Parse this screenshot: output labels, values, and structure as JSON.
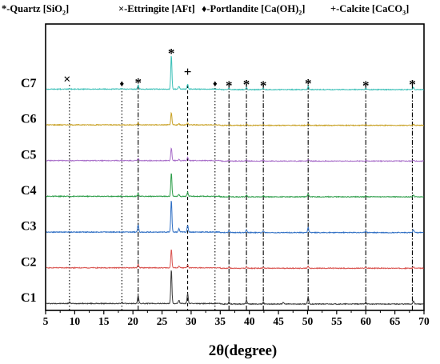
{
  "legend": {
    "quartz": {
      "symbol": "*",
      "label": "-Quartz [SiO",
      "sub": "2",
      "tail": "]"
    },
    "ettringite": {
      "symbol": "×",
      "label": "-Ettringite [AFt]"
    },
    "portlandite": {
      "symbol": "♦",
      "label": "-Portlandite [Ca(OH)",
      "sub": "2",
      "tail": "]"
    },
    "calcite": {
      "symbol": "+",
      "label": "-Calcite [CaCO",
      "sub": "3",
      "tail": "]"
    }
  },
  "chart_data": {
    "type": "line",
    "xlabel": "2θ(degree)",
    "ylabel": "",
    "xlim": [
      5,
      70
    ],
    "xticks": [
      5,
      10,
      15,
      20,
      25,
      30,
      35,
      40,
      45,
      50,
      55,
      60,
      65,
      70
    ],
    "grid": false,
    "series": [
      {
        "name": "C1",
        "color": "#3a3a3a",
        "peaks": [
          [
            9.1,
            0.05
          ],
          [
            18.1,
            0.04
          ],
          [
            20.9,
            0.25
          ],
          [
            26.6,
            1.0
          ],
          [
            27.9,
            0.1
          ],
          [
            29.4,
            0.3
          ],
          [
            36.5,
            0.07
          ],
          [
            39.5,
            0.12
          ],
          [
            42.4,
            0.06
          ],
          [
            45.8,
            0.05
          ],
          [
            50.1,
            0.22
          ],
          [
            60.0,
            0.07
          ],
          [
            68.2,
            0.1
          ]
        ]
      },
      {
        "name": "C2",
        "color": "#d9534f",
        "peaks": [
          [
            20.9,
            0.1
          ],
          [
            26.6,
            0.55
          ],
          [
            27.9,
            0.05
          ],
          [
            29.4,
            0.09
          ],
          [
            36.5,
            0.03
          ],
          [
            39.5,
            0.04
          ],
          [
            42.4,
            0.03
          ],
          [
            50.1,
            0.07
          ],
          [
            60.0,
            0.03
          ],
          [
            68.2,
            0.04
          ]
        ]
      },
      {
        "name": "C3",
        "color": "#2f6fc4",
        "peaks": [
          [
            20.9,
            0.22
          ],
          [
            26.6,
            0.95
          ],
          [
            27.9,
            0.1
          ],
          [
            29.4,
            0.2
          ],
          [
            36.5,
            0.05
          ],
          [
            39.5,
            0.08
          ],
          [
            42.4,
            0.05
          ],
          [
            50.1,
            0.15
          ],
          [
            60.0,
            0.05
          ],
          [
            68.2,
            0.08
          ]
        ]
      },
      {
        "name": "C4",
        "color": "#2e9e4a",
        "peaks": [
          [
            20.9,
            0.1
          ],
          [
            26.6,
            0.7
          ],
          [
            27.9,
            0.06
          ],
          [
            29.4,
            0.12
          ],
          [
            36.5,
            0.03
          ],
          [
            39.5,
            0.05
          ],
          [
            42.4,
            0.03
          ],
          [
            50.1,
            0.08
          ],
          [
            60.0,
            0.03
          ],
          [
            68.2,
            0.05
          ]
        ]
      },
      {
        "name": "C5",
        "color": "#a86ec9",
        "peaks": [
          [
            20.9,
            0.06
          ],
          [
            26.6,
            0.38
          ],
          [
            27.9,
            0.04
          ],
          [
            29.4,
            0.1
          ],
          [
            36.5,
            0.02
          ],
          [
            39.5,
            0.04
          ],
          [
            42.4,
            0.02
          ],
          [
            50.1,
            0.05
          ],
          [
            60.0,
            0.02
          ],
          [
            68.2,
            0.03
          ]
        ]
      },
      {
        "name": "C6",
        "color": "#c9a227",
        "peaks": [
          [
            20.9,
            0.06
          ],
          [
            26.6,
            0.35
          ],
          [
            27.9,
            0.03
          ],
          [
            29.4,
            0.06
          ],
          [
            36.5,
            0.02
          ],
          [
            39.5,
            0.03
          ],
          [
            42.4,
            0.02
          ],
          [
            50.1,
            0.04
          ],
          [
            60.0,
            0.02
          ],
          [
            68.2,
            0.03
          ]
        ]
      },
      {
        "name": "C7",
        "color": "#3cc0b8",
        "peaks": [
          [
            9.1,
            0.02
          ],
          [
            18.1,
            0.02
          ],
          [
            20.9,
            0.12
          ],
          [
            26.6,
            1.0
          ],
          [
            27.9,
            0.08
          ],
          [
            29.4,
            0.15
          ],
          [
            36.5,
            0.04
          ],
          [
            39.5,
            0.07
          ],
          [
            42.4,
            0.04
          ],
          [
            50.1,
            0.1
          ],
          [
            60.0,
            0.04
          ],
          [
            68.2,
            0.07
          ]
        ]
      }
    ],
    "reference_lines": [
      {
        "x": 9.1,
        "style": "dotted",
        "marker": "×"
      },
      {
        "x": 18.1,
        "style": "dotted",
        "marker": "♦"
      },
      {
        "x": 20.9,
        "style": "dashdot",
        "marker": "*"
      },
      {
        "x": 26.6,
        "style": "none",
        "marker": "*"
      },
      {
        "x": 29.4,
        "style": "dashed",
        "marker": "+"
      },
      {
        "x": 34.1,
        "style": "dotted",
        "marker": "♦"
      },
      {
        "x": 36.5,
        "style": "dashdot",
        "marker": "*"
      },
      {
        "x": 39.5,
        "style": "dashdot",
        "marker": "*"
      },
      {
        "x": 42.4,
        "style": "dashdot",
        "marker": "*"
      },
      {
        "x": 50.1,
        "style": "dashdot",
        "marker": "*"
      },
      {
        "x": 60.0,
        "style": "dashdot",
        "marker": "*"
      },
      {
        "x": 68.0,
        "style": "dashdot",
        "marker": "*"
      }
    ]
  }
}
